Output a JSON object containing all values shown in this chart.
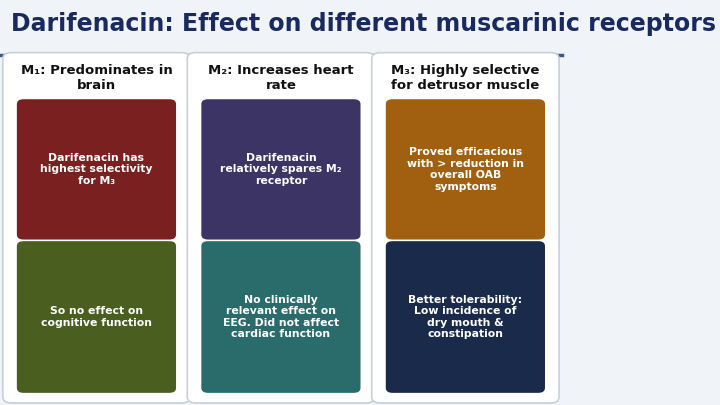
{
  "title": "Darifenacin: Effect on different muscarinic receptors",
  "title_color": "#1a2a5e",
  "title_fontsize": 17,
  "bg_color": "#f0f4f8",
  "header_line_color": "#3a5a8a",
  "card_bg": "#ffffff",
  "card_border": "#c8d0da",
  "columns": [
    {
      "header": "M₁: Predominates in\nbrain",
      "boxes": [
        {
          "text": "Darifenacin has\nhighest selectivity\nfor M₃",
          "bg": "#7b2020",
          "text_color": "#ffffff"
        },
        {
          "text": "So no effect on\ncognitive function",
          "bg": "#4a5e20",
          "text_color": "#ffffff"
        }
      ]
    },
    {
      "header": "M₂: Increases heart\nrate",
      "boxes": [
        {
          "text": "Darifenacin\nrelatively spares M₂\nreceptor",
          "bg": "#3d3466",
          "text_color": "#ffffff"
        },
        {
          "text": "No clinically\nrelevant effect on\nEEG. Did not affect\ncardiac function",
          "bg": "#2a6b6b",
          "text_color": "#ffffff"
        }
      ]
    },
    {
      "header": "M₃: Highly selective\nfor detrusor muscle",
      "boxes": [
        {
          "text": "Proved efficacious\nwith > reduction in\noverall OAB\nsymptoms",
          "bg": "#a06010",
          "text_color": "#ffffff"
        },
        {
          "text": "Better tolerability:\nLow incidence of\ndry mouth &\nconstipation",
          "bg": "#1a2a4a",
          "text_color": "#ffffff"
        }
      ]
    }
  ]
}
